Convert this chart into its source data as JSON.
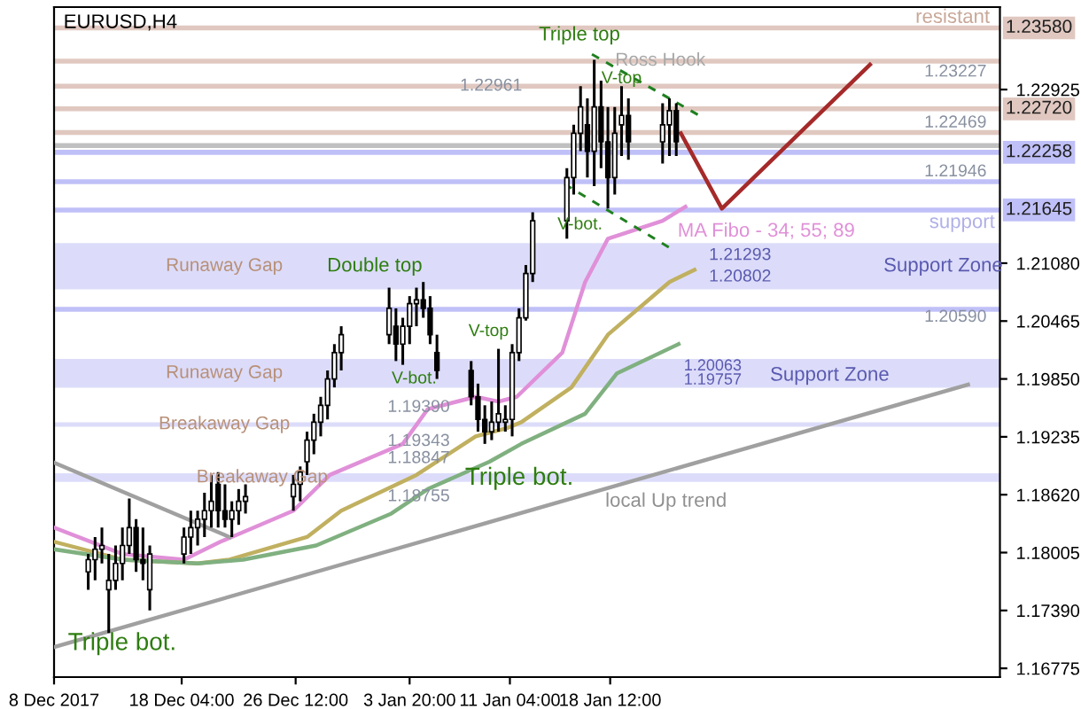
{
  "chart_data": {
    "type": "candlestick",
    "title": "EURUSD,H4",
    "x": [
      "2017-12-11T08:00",
      "2017-12-11T20:00",
      "2017-12-12T08:00",
      "2017-12-12T20:00",
      "2017-12-13T08:00",
      "2017-12-13T20:00",
      "2017-12-14T08:00",
      "2017-12-14T20:00",
      "2017-12-15T08:00",
      "2017-12-15T20:00",
      "2017-12-18T08:00",
      "2017-12-18T20:00",
      "2017-12-19T08:00",
      "2017-12-19T20:00",
      "2017-12-20T08:00",
      "2017-12-20T20:00",
      "2017-12-21T08:00",
      "2017-12-21T20:00",
      "2017-12-22T08:00",
      "2017-12-22T20:00",
      "2017-12-26T08:00",
      "2017-12-26T20:00",
      "2017-12-27T08:00",
      "2017-12-27T20:00",
      "2017-12-28T08:00",
      "2017-12-28T20:00",
      "2017-12-29T08:00",
      "2017-12-29T20:00",
      "2018-01-02T08:00",
      "2018-01-02T20:00",
      "2018-01-03T08:00",
      "2018-01-03T20:00",
      "2018-01-04T08:00",
      "2018-01-04T20:00",
      "2018-01-05T08:00",
      "2018-01-05T20:00",
      "2018-01-08T08:00",
      "2018-01-08T20:00",
      "2018-01-09T08:00",
      "2018-01-09T20:00",
      "2018-01-10T08:00",
      "2018-01-10T20:00",
      "2018-01-11T08:00",
      "2018-01-11T20:00",
      "2018-01-12T08:00",
      "2018-01-12T20:00",
      "2018-01-15T08:00",
      "2018-01-15T20:00",
      "2018-01-16T08:00",
      "2018-01-16T20:00",
      "2018-01-17T08:00",
      "2018-01-17T20:00",
      "2018-01-18T08:00",
      "2018-01-18T20:00",
      "2018-01-19T08:00",
      "2018-01-19T20:00",
      "2018-01-22T08:00",
      "2018-01-22T20:00",
      "2018-01-23T08:00"
    ],
    "ohlc": [
      [
        1.178,
        1.1799,
        1.1761,
        1.1793
      ],
      [
        1.1793,
        1.1817,
        1.1771,
        1.1804
      ],
      [
        1.1804,
        1.1827,
        1.1789,
        1.1808
      ],
      [
        1.1761,
        1.1799,
        1.1715,
        1.1771
      ],
      [
        1.1771,
        1.1808,
        1.1761,
        1.1789
      ],
      [
        1.1789,
        1.1827,
        1.1771,
        1.1808
      ],
      [
        1.1808,
        1.1858,
        1.1799,
        1.1827
      ],
      [
        1.1827,
        1.1836,
        1.178,
        1.1793
      ],
      [
        1.1793,
        1.1827,
        1.1771,
        1.1789
      ],
      [
        1.1761,
        1.1808,
        1.1739,
        1.1799
      ],
      [
        1.1799,
        1.1827,
        1.1789,
        1.1817
      ],
      [
        1.1817,
        1.1845,
        1.1799,
        1.1827
      ],
      [
        1.1827,
        1.1845,
        1.1808,
        1.1836
      ],
      [
        1.1836,
        1.1864,
        1.1817,
        1.1845
      ],
      [
        1.1845,
        1.1883,
        1.1827,
        1.1855
      ],
      [
        1.1873,
        1.1886,
        1.1827,
        1.1845
      ],
      [
        1.1845,
        1.1873,
        1.1827,
        1.1836
      ],
      [
        1.1836,
        1.1855,
        1.1817,
        1.1845
      ],
      [
        1.1845,
        1.1868,
        1.183,
        1.1855
      ],
      [
        1.1855,
        1.1873,
        1.1842,
        1.186
      ],
      [
        1.186,
        1.1883,
        1.1845,
        1.1873
      ],
      [
        1.1873,
        1.1892,
        1.1855,
        1.1886
      ],
      [
        1.1897,
        1.1929,
        1.1883,
        1.192
      ],
      [
        1.192,
        1.1948,
        1.1905,
        1.1939
      ],
      [
        1.1939,
        1.1966,
        1.1924,
        1.1957
      ],
      [
        1.1957,
        1.1994,
        1.1942,
        1.1985
      ],
      [
        1.1985,
        1.2022,
        1.1976,
        1.2013
      ],
      [
        1.2013,
        1.2041,
        1.1994,
        1.2032
      ],
      [
        1.2032,
        1.2082,
        1.2022,
        1.206
      ],
      [
        1.2041,
        1.206,
        1.2004,
        1.2022
      ],
      [
        1.2022,
        1.205,
        1.2,
        1.2041
      ],
      [
        1.2041,
        1.2073,
        1.2022,
        1.2065
      ],
      [
        1.2065,
        1.2082,
        1.2041,
        1.2069
      ],
      [
        1.2069,
        1.2088,
        1.205,
        1.206
      ],
      [
        1.206,
        1.2073,
        1.2022,
        1.2032
      ],
      [
        1.2013,
        1.2032,
        1.1985,
        1.1994
      ],
      [
        1.1994,
        1.2004,
        1.1957,
        1.1966
      ],
      [
        1.1966,
        1.198,
        1.1929,
        1.1942
      ],
      [
        1.1942,
        1.1957,
        1.1916,
        1.1929
      ],
      [
        1.1929,
        1.1961,
        1.192,
        1.1939
      ],
      [
        1.1939,
        1.2017,
        1.1929,
        1.1948
      ],
      [
        1.1939,
        1.1957,
        1.1929,
        1.1942
      ],
      [
        1.1942,
        1.2022,
        1.1924,
        1.2013
      ],
      [
        1.2013,
        1.206,
        1.2004,
        1.205
      ],
      [
        1.205,
        1.2106,
        1.2047,
        1.2097
      ],
      [
        1.2097,
        1.2162,
        1.2088,
        1.2153
      ],
      [
        1.2153,
        1.2209,
        1.2134,
        1.2199
      ],
      [
        1.2199,
        1.2255,
        1.2181,
        1.2246
      ],
      [
        1.2246,
        1.2296,
        1.2227,
        1.2274
      ],
      [
        1.2255,
        1.2283,
        1.2199,
        1.2227
      ],
      [
        1.2227,
        1.2324,
        1.219,
        1.2274
      ],
      [
        1.2274,
        1.2302,
        1.2209,
        1.2237
      ],
      [
        1.2237,
        1.2274,
        1.2166,
        1.2199
      ],
      [
        1.2199,
        1.2274,
        1.2181,
        1.2246
      ],
      [
        1.2255,
        1.2296,
        1.2222,
        1.2265
      ],
      [
        1.2265,
        1.2283,
        1.2218,
        1.2237
      ],
      [
        1.2237,
        1.2278,
        1.2214,
        1.2255
      ],
      [
        1.2255,
        1.2283,
        1.2222,
        1.227
      ],
      [
        1.227,
        1.2278,
        1.2222,
        1.2237
      ]
    ],
    "color": "#000000",
    "series": [
      {
        "type": "line",
        "color": "#e090d8",
        "x": [
          "2017-12-08T20:00",
          "2017-12-13T20:00",
          "2017-12-18T08:00",
          "2017-12-21T00:00",
          "2017-12-26T08:00",
          "2017-12-29T00:00",
          "2018-01-03T08:00",
          "2018-01-05T04:00",
          "2018-01-08T16:00",
          "2018-01-10T08:00",
          "2018-01-11T16:00",
          "2018-01-15T00:00",
          "2018-01-16T16:00",
          "2018-01-18T08:00",
          "2018-01-22T08:00",
          "2018-01-24T00:00"
        ],
        "values": [
          1.1827,
          1.1799,
          1.1793,
          1.1812,
          1.1845,
          1.1883,
          1.1916,
          1.1953,
          1.1966,
          1.1961,
          1.1966,
          1.2013,
          1.2088,
          1.2134,
          1.2153,
          1.2168
        ]
      },
      {
        "type": "line",
        "color": "#c0b060",
        "x": [
          "2017-12-08T20:00",
          "2017-12-13T20:00",
          "2017-12-19T08:00",
          "2017-12-21T16:00",
          "2017-12-27T08:00",
          "2017-12-29T20:00",
          "2018-01-04T08:00",
          "2018-01-08T16:00",
          "2018-01-11T00:00",
          "2018-01-12T00:00",
          "2018-01-15T16:00",
          "2018-01-18T08:00",
          "2018-01-22T20:00",
          "2018-01-24T16:00"
        ],
        "values": [
          1.1812,
          1.1793,
          1.1789,
          1.1793,
          1.1817,
          1.1845,
          1.1883,
          1.1924,
          1.1933,
          1.1939,
          1.1976,
          1.2032,
          1.2088,
          1.2101
        ]
      },
      {
        "type": "line",
        "color": "#80b080",
        "x": [
          "2017-12-08T20:00",
          "2017-12-13T20:00",
          "2017-12-19T08:00",
          "2017-12-22T16:00",
          "2017-12-28T00:00",
          "2018-01-02T12:00",
          "2018-01-05T04:00",
          "2018-01-09T16:00",
          "2018-01-12T00:00",
          "2018-01-16T16:00",
          "2018-01-19T00:00",
          "2018-01-23T12:00"
        ],
        "values": [
          1.1804,
          1.1793,
          1.1789,
          1.1793,
          1.1808,
          1.1842,
          1.1868,
          1.1897,
          1.1916,
          1.1948,
          1.1991,
          1.2022
        ]
      },
      {
        "type": "line",
        "color": "#a0a0a0",
        "x": [
          "2017-12-08T20:00",
          "2018-02-13T16:00"
        ],
        "values": [
          1.17,
          1.1979
        ]
      },
      {
        "type": "line",
        "color": "#a0a0a0",
        "x": [
          "2017-12-08T20:00",
          "2017-12-21T16:00"
        ],
        "values": [
          1.1896,
          1.1817
        ]
      },
      {
        "type": "line",
        "color": "#208020",
        "line_style": "dashed",
        "x": [
          "2018-01-17T04:00",
          "2018-01-25T00:00"
        ],
        "values": [
          1.233,
          1.2265
        ]
      },
      {
        "type": "line",
        "color": "#208020",
        "line_style": "dashed",
        "x": [
          "2018-01-15T04:00",
          "2018-01-23T00:00"
        ],
        "values": [
          1.2192,
          1.2123
        ]
      },
      {
        "type": "line",
        "color": "#a52a2a",
        "x": [
          "2018-01-23T16:00",
          "2018-01-26T16:00",
          "2018-02-06T12:00"
        ],
        "values": [
          1.2246,
          1.2166,
          1.2319
        ]
      }
    ],
    "xlim": [
      "2017-12-08T20:00",
      "2018-02-16T00:00"
    ],
    "xticks": [
      {
        "value": "2017-12-08T20:00",
        "label": "8 Dec 2017"
      },
      {
        "value": "2017-12-18T04:00",
        "label": "18 Dec 04:00"
      },
      {
        "value": "2017-12-26T12:00",
        "label": "26 Dec 12:00"
      },
      {
        "value": "2018-01-03T20:00",
        "label": "3 Jan 20:00"
      },
      {
        "value": "2018-01-11T04:00",
        "label": "11 Jan 04:00"
      },
      {
        "value": "2018-01-18T12:00",
        "label": "18 Jan 12:00"
      }
    ],
    "ylim": [
      1.16682,
      1.23801
    ],
    "yticks": [
      1.16775,
      {
        "value": 1.1739,
        "label": "1.17390"
      },
      1.18005,
      {
        "value": 1.1862,
        "label": "1.18620"
      },
      1.19235,
      {
        "value": 1.1985,
        "label": "1.19850"
      },
      1.20465,
      {
        "value": 1.2108,
        "label": "1.21080"
      },
      1.22925
    ],
    "bands": [
      {
        "axis": "y",
        "from": 1.20802,
        "to": 1.21293,
        "label": "Runaway Gap",
        "color": "#dcdcfa"
      },
      {
        "axis": "y",
        "from": 1.19757,
        "to": 1.20063,
        "label": "Runaway Gap",
        "color": "#dcdcfa"
      },
      {
        "axis": "y",
        "from": 1.19343,
        "to": 1.1939,
        "label": "Breakaway Gap",
        "color": "#dcdcfa"
      },
      {
        "axis": "y",
        "from": 1.18755,
        "to": 1.18847,
        "label": "Breakaway Gap",
        "color": "#dcdcfa"
      }
    ],
    "ref_lines": [
      {
        "axis": "y",
        "value": 1.2358,
        "label": "1.23580",
        "color": "#e0c8c0"
      },
      {
        "axis": "y",
        "value": 1.23227,
        "label": null,
        "color": "#e0c8c0"
      },
      {
        "axis": "y",
        "value": 1.22961,
        "label": null,
        "color": "#e0c8c0"
      },
      {
        "axis": "y",
        "value": 1.2272,
        "label": "1.22720",
        "color": "#e0c8c0"
      },
      {
        "axis": "y",
        "value": 1.22469,
        "label": null,
        "color": "#e0c8c0"
      },
      {
        "axis": "y",
        "value": 1.2233,
        "label": null,
        "color": "#c0c0c0"
      },
      {
        "axis": "y",
        "value": 1.22258,
        "label": "1.22258",
        "color": "#c0c0f8"
      },
      {
        "axis": "y",
        "value": 1.21946,
        "label": null,
        "color": "#c0c0f8"
      },
      {
        "axis": "y",
        "value": 1.21645,
        "label": "1.21645",
        "color": "#c0c0f8"
      },
      {
        "axis": "y",
        "value": 1.2059,
        "label": null,
        "color": "#c0c0f8"
      }
    ],
    "annotations": [
      "resistant",
      "support",
      "Support Zone",
      "Support Zone",
      {
        "text": "Triple top",
        "x": "2018-01-17T08:00",
        "y": 1.2324
      },
      {
        "text": "Ross Hook",
        "x": "2018-01-22T04:00",
        "y": 1.2323
      },
      {
        "text": "V-top",
        "x": "2018-01-19T08:00",
        "y": 1.2304
      },
      "1.22961",
      "1.23227",
      "1.22469",
      "1.21946",
      "1.20590",
      "V-bot.",
      "MA Fibo - 34; 55; 89",
      "Double top",
      {
        "text": "V-bot.",
        "x": "2018-01-04T04:00",
        "y": 1.1985
      },
      {
        "text": "V-top",
        "x": "2018-01-10T08:00",
        "y": 1.2017
      },
      {
        "text": "Triple bot.",
        "x": "2018-01-09T08:00",
        "y": 1.1916
      },
      "Triple bot.",
      "local Up trend",
      {
        "text": "1.21293",
        "x": "2018-01-28T00:00",
        "y": 1.21293
      },
      {
        "text": "1.20802",
        "x": "2018-01-28T00:00",
        "y": 1.20802
      },
      {
        "text": "1.20063",
        "x": "2018-01-26T00:00",
        "y": 1.20063
      },
      {
        "text": "1.19757",
        "x": "2018-01-26T00:00",
        "y": 1.19757
      },
      {
        "text": "1.19390",
        "x": "2018-01-04T12:00",
        "y": 1.1939
      },
      {
        "text": "1.19343",
        "x": "2018-01-04T12:00",
        "y": 1.19343
      },
      {
        "text": "1.18847",
        "x": "2018-01-04T12:00",
        "y": 1.18847
      },
      {
        "text": "1.18755",
        "x": "2018-01-04T12:00",
        "y": 1.18755
      }
    ],
    "grid": false,
    "legend": false
  }
}
